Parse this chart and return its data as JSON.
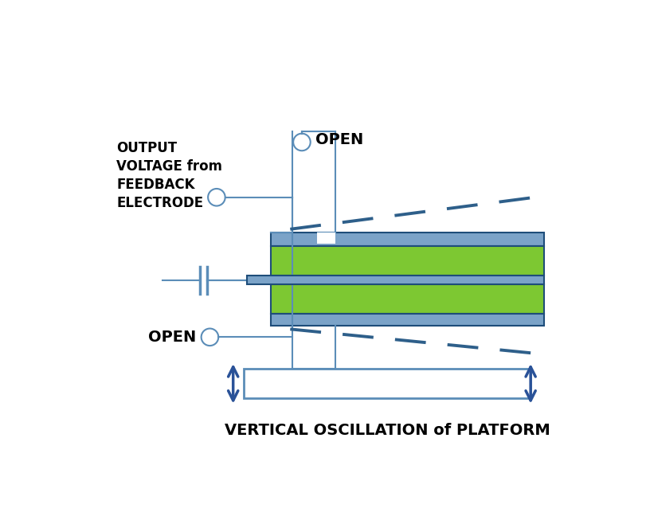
{
  "bg_color": "#ffffff",
  "line_color": "#5b8db8",
  "dark_line_color": "#1e4d7a",
  "green_color": "#7dc832",
  "blue_gray_color": "#7ba3c8",
  "arrow_color": "#2a5298",
  "dashed_color": "#2e5f8a",
  "text_color": "#000000",
  "title_text": "VERTICAL OSCILLATION of PLATFORM",
  "open_top_text": "OPEN",
  "open_bottom_text": "OPEN",
  "output_voltage_text": "OUTPUT\nVOLTAGE from\nFEEDBACK\nELECTRODE"
}
